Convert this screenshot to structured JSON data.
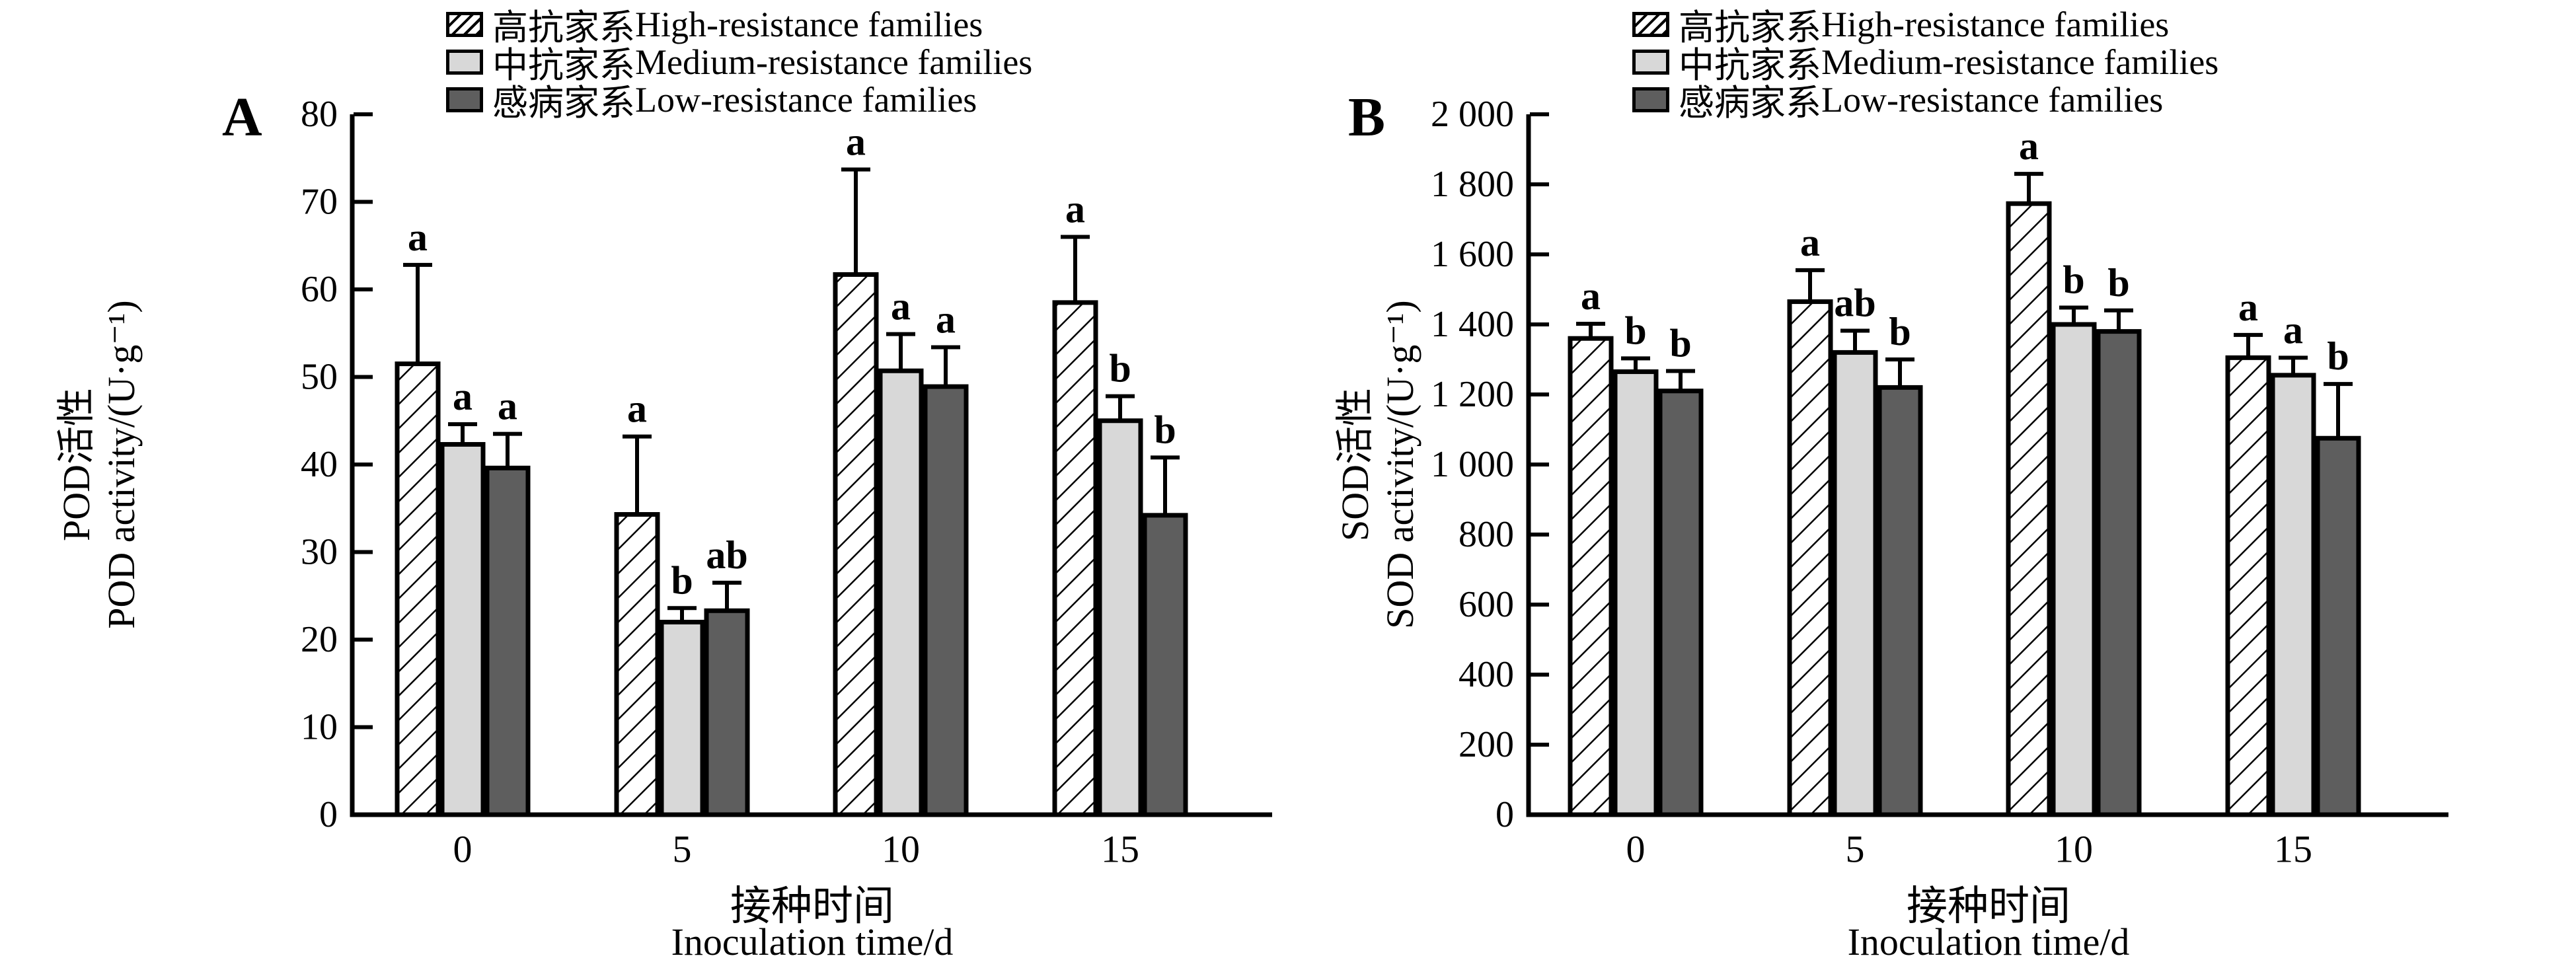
{
  "figure": {
    "panels": [
      {
        "label": "A",
        "legend": [
          {
            "key": "high",
            "zh": "高抗家系",
            "en": "High-resistance families"
          },
          {
            "key": "medium",
            "zh": "中抗家系",
            "en": "Medium-resistance families"
          },
          {
            "key": "low",
            "zh": "感病家系",
            "en": "Low-resistance families"
          }
        ]
      },
      {
        "label": "B",
        "legend": [
          {
            "key": "high",
            "zh": "高抗家系",
            "en": "High-resistance families"
          },
          {
            "key": "medium",
            "zh": "中抗家系",
            "en": "Medium-resistance families"
          },
          {
            "key": "low",
            "zh": "感病家系",
            "en": "Low-resistance families"
          }
        ]
      }
    ]
  },
  "colors": {
    "background": "#ffffff",
    "bar_outline": "#000000",
    "hatch_line": "#000000",
    "high_fill": "#ffffff",
    "medium_fill": "#d8d8d8",
    "low_fill": "#5e5e5e"
  },
  "chart_data": [
    {
      "type": "bar",
      "panel": "A",
      "categories": [
        "0",
        "5",
        "10",
        "15"
      ],
      "xlabel_zh": "接种时间",
      "xlabel_en": "Inoculation time/d",
      "ylabel_zh": "POD活性",
      "ylabel_en": "POD activity/(U·g⁻¹)",
      "ylim": [
        0,
        80
      ],
      "ytick_step": 10,
      "ytick_labels": [
        "0",
        "10",
        "20",
        "30",
        "40",
        "50",
        "60",
        "70",
        "80"
      ],
      "grid": false,
      "legend_position": "top",
      "series": [
        {
          "name": "高抗家系 High-resistance families",
          "key": "high",
          "values": [
            51.5,
            34.3,
            61.7,
            58.5
          ],
          "errors": [
            11.3,
            8.9,
            12.0,
            7.5
          ],
          "letters": [
            "a",
            "a",
            "a",
            "a"
          ]
        },
        {
          "name": "中抗家系 Medium-resistance families",
          "key": "medium",
          "values": [
            42.3,
            22.0,
            50.7,
            45.0
          ],
          "errors": [
            2.3,
            1.6,
            4.2,
            2.8
          ],
          "letters": [
            "a",
            "b",
            "a",
            "b"
          ]
        },
        {
          "name": "感病家系 Low-resistance families",
          "key": "low",
          "values": [
            39.6,
            23.3,
            48.9,
            34.2
          ],
          "errors": [
            3.9,
            3.2,
            4.5,
            6.6
          ],
          "letters": [
            "a",
            "ab",
            "a",
            "b"
          ]
        }
      ]
    },
    {
      "type": "bar",
      "panel": "B",
      "categories": [
        "0",
        "5",
        "10",
        "15"
      ],
      "xlabel_zh": "接种时间",
      "xlabel_en": "Inoculation time/d",
      "ylabel_zh": "SOD活性",
      "ylabel_en": "SOD activity/(U·g⁻¹)",
      "ylim": [
        0,
        2000
      ],
      "ytick_step": 200,
      "ytick_labels": [
        "0",
        "200",
        "400",
        "600",
        "800",
        "1 000",
        "1 200",
        "1 400",
        "1 600",
        "1 800",
        "2 000"
      ],
      "grid": false,
      "legend_position": "top",
      "series": [
        {
          "name": "高抗家系 High-resistance families",
          "key": "high",
          "values": [
            1360,
            1465,
            1745,
            1305
          ],
          "errors": [
            42,
            90,
            85,
            65
          ],
          "letters": [
            "a",
            "a",
            "a",
            "a"
          ]
        },
        {
          "name": "中抗家系 Medium-resistance families",
          "key": "medium",
          "values": [
            1265,
            1320,
            1400,
            1255
          ],
          "errors": [
            38,
            62,
            48,
            50
          ],
          "letters": [
            "b",
            "ab",
            "b",
            "a"
          ]
        },
        {
          "name": "感病家系 Low-resistance families",
          "key": "low",
          "values": [
            1210,
            1220,
            1380,
            1075
          ],
          "errors": [
            57,
            80,
            60,
            155
          ],
          "letters": [
            "b",
            "b",
            "b",
            "b"
          ]
        }
      ]
    }
  ]
}
